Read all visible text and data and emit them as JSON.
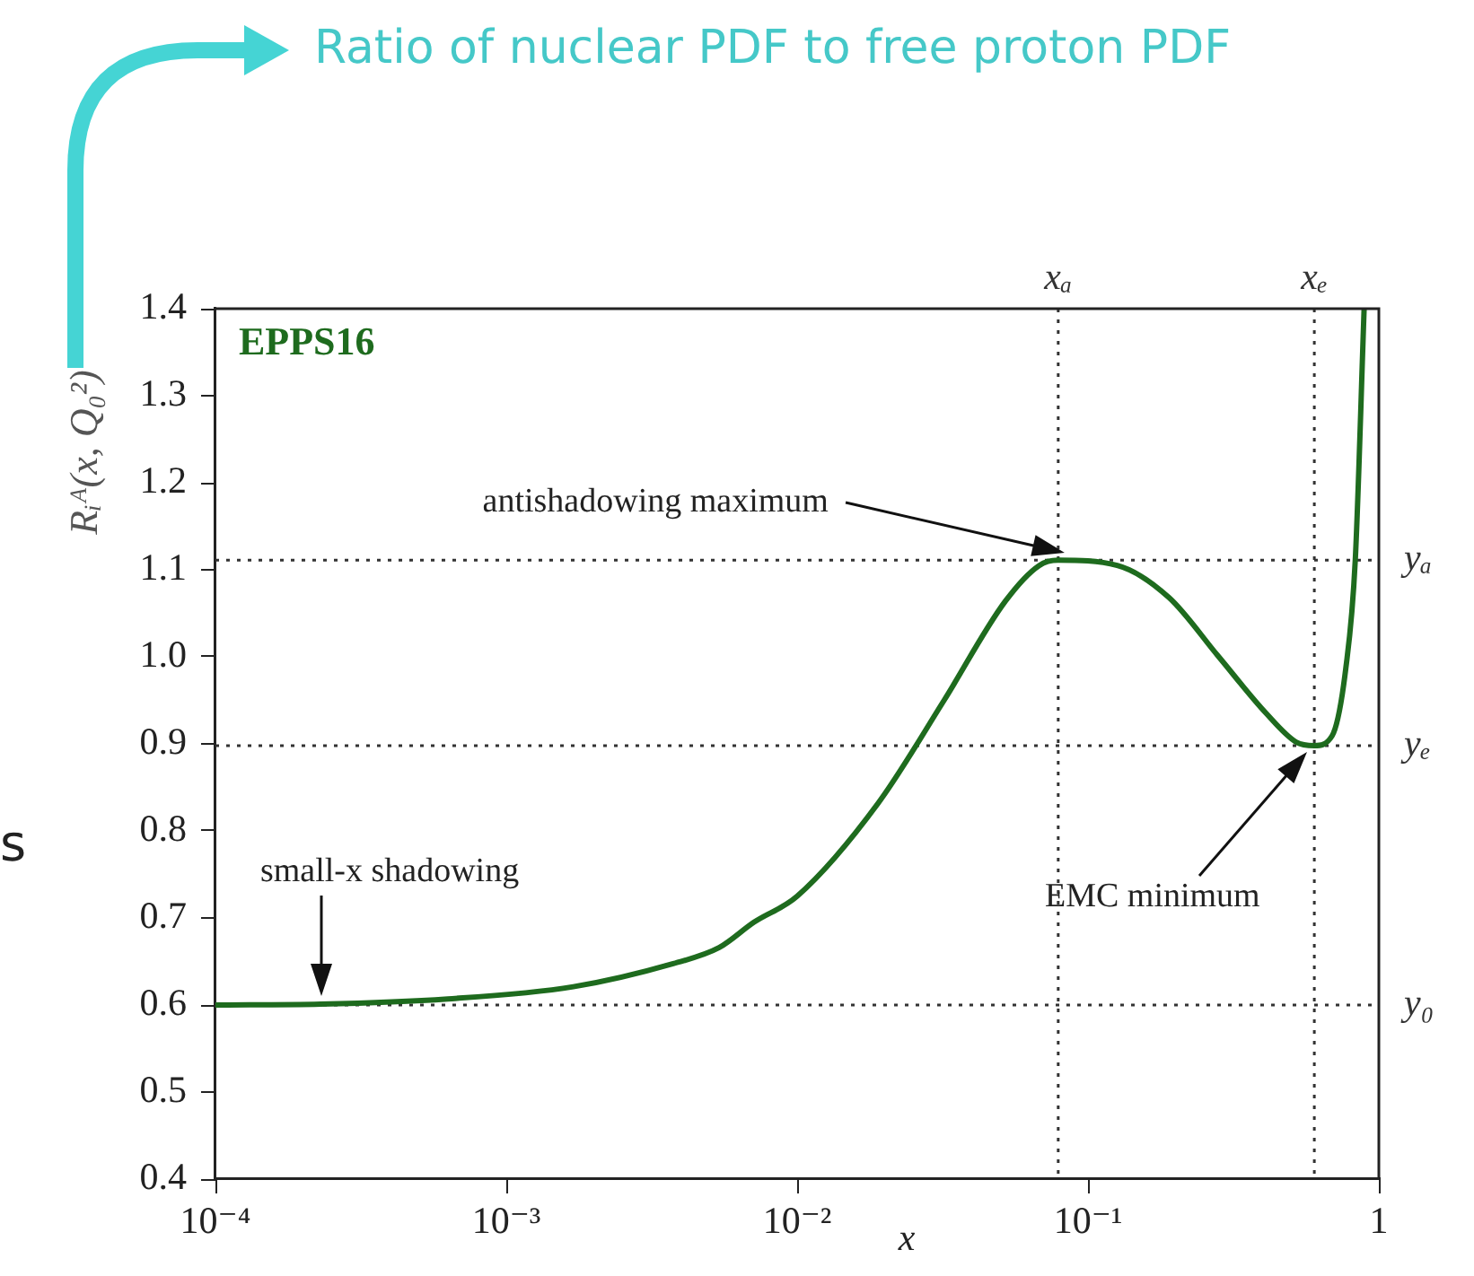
{
  "chart_data": {
    "type": "line",
    "title": "Ratio of nuclear PDF to free proton PDF",
    "xlabel": "x",
    "ylabel": "Rᵢᴬ(x, Q₀²)",
    "log": "x",
    "grid": false,
    "legend": false,
    "marker": "none",
    "line_style": "solid",
    "xlim": [
      0.0001,
      1
    ],
    "xticks": [
      {
        "value": 0.0001,
        "label": "10⁻⁴"
      },
      {
        "value": 0.001,
        "label": "10⁻³"
      },
      {
        "value": 0.01,
        "label": "10⁻²"
      },
      {
        "value": 0.1,
        "label": "10⁻¹"
      },
      1
    ],
    "ylim": [
      0.4,
      1.4
    ],
    "yticks": [
      {
        "value": 0.4,
        "label": "0.4"
      },
      {
        "value": 0.5,
        "label": "0.5"
      },
      {
        "value": 0.6,
        "label": "0.6"
      },
      {
        "value": 0.7,
        "label": "0.7"
      },
      {
        "value": 0.8,
        "label": "0.8"
      },
      {
        "value": 0.9,
        "label": "0.9"
      },
      {
        "value": 1.0,
        "label": "1.0"
      },
      {
        "value": 1.1,
        "label": "1.1"
      },
      {
        "value": 1.2,
        "label": "1.2"
      },
      {
        "value": 1.3,
        "label": "1.3"
      },
      {
        "value": 1.4,
        "label": "1.4"
      }
    ],
    "series": [
      {
        "color": "#1e6b1e",
        "x": [
          0.0001,
          0.00023,
          0.00063,
          0.0017,
          0.0037,
          0.0054,
          0.0071,
          0.01,
          0.019,
          0.032,
          0.052,
          0.068,
          0.079,
          0.126,
          0.19,
          0.28,
          0.41,
          0.52,
          0.6,
          0.69,
          0.77,
          0.83,
          0.89
        ],
        "values": [
          0.6,
          0.601,
          0.607,
          0.621,
          0.647,
          0.666,
          0.695,
          0.725,
          0.832,
          0.95,
          1.064,
          1.105,
          1.111,
          1.105,
          1.068,
          1.001,
          0.935,
          0.902,
          0.898,
          0.909,
          0.987,
          1.112,
          1.4
        ]
      }
    ],
    "ref_lines": [
      {
        "axis": "x",
        "value": 0.079,
        "label": "xₐ",
        "color": "#333333",
        "line_style": "dotted"
      },
      {
        "axis": "x",
        "value": 0.6,
        "label": "xₑ",
        "color": "#333333",
        "line_style": "dotted"
      },
      {
        "axis": "y",
        "value": 1.111,
        "label": "yₐ",
        "color": "#333333",
        "line_style": "dotted"
      },
      {
        "axis": "y",
        "value": 0.898,
        "label": "yₑ",
        "color": "#333333",
        "line_style": "dotted"
      },
      {
        "axis": "y",
        "value": 0.6,
        "label": "y₀",
        "color": "#333333",
        "line_style": "dotted"
      }
    ],
    "annotations": [
      "EPPS16",
      {
        "text": "antishadowing maximum",
        "x": 0.079,
        "y": 1.111
      },
      "small-x shadowing",
      "EMC minimum",
      "s"
    ]
  }
}
